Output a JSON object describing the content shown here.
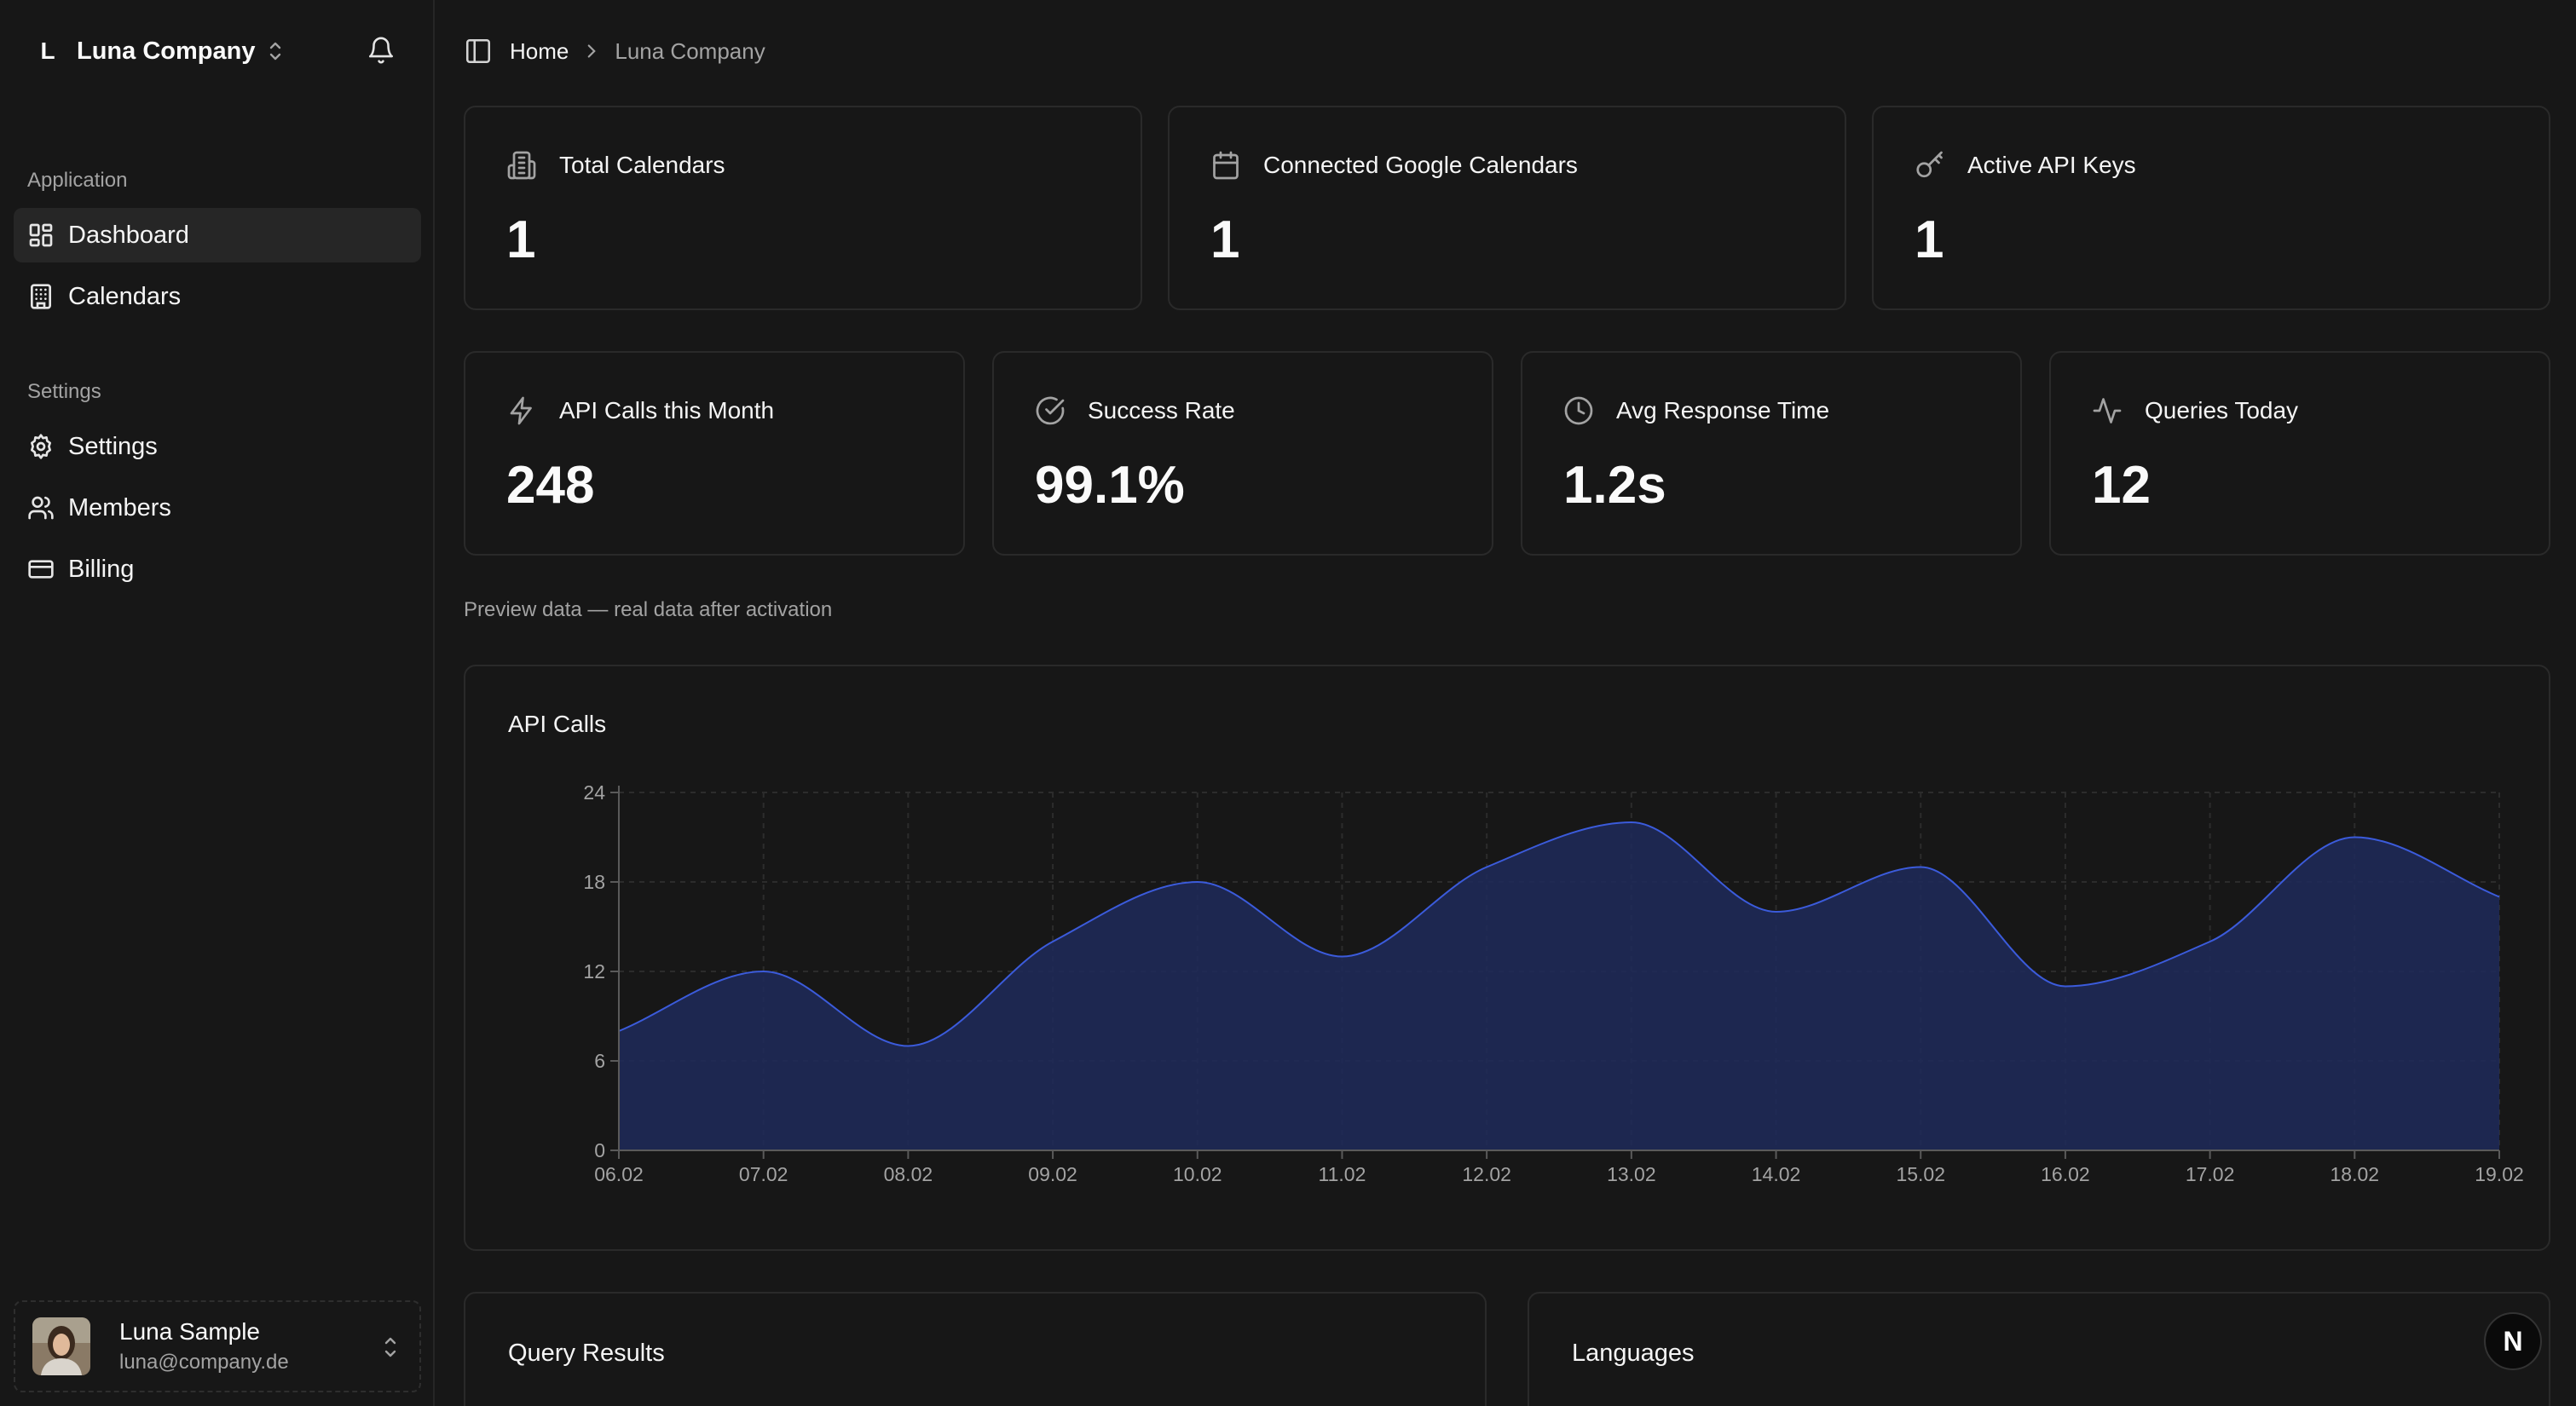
{
  "team": {
    "logo_letter": "L",
    "name": "Luna Company"
  },
  "sidebar": {
    "groups": [
      {
        "label": "Application",
        "items": [
          {
            "label": "Dashboard",
            "icon": "layout-dashboard-icon",
            "active": true
          },
          {
            "label": "Calendars",
            "icon": "building-icon"
          }
        ]
      },
      {
        "label": "Settings",
        "items": [
          {
            "label": "Settings",
            "icon": "gear-icon"
          },
          {
            "label": "Members",
            "icon": "users-icon"
          },
          {
            "label": "Billing",
            "icon": "credit-card-icon"
          }
        ]
      }
    ]
  },
  "user": {
    "name": "Luna Sample",
    "email": "luna@company.de"
  },
  "breadcrumb": {
    "home": "Home",
    "current": "Luna Company"
  },
  "stats_top": [
    {
      "title": "Total Calendars",
      "value": "1",
      "icon": "building-icon"
    },
    {
      "title": "Connected Google Calendars",
      "value": "1",
      "icon": "calendar-icon"
    },
    {
      "title": "Active API Keys",
      "value": "1",
      "icon": "key-icon"
    }
  ],
  "stats_bottom": [
    {
      "title": "API Calls this Month",
      "value": "248",
      "icon": "zap-icon"
    },
    {
      "title": "Success Rate",
      "value": "99.1%",
      "icon": "check-circle-icon"
    },
    {
      "title": "Avg Response Time",
      "value": "1.2s",
      "icon": "clock-icon"
    },
    {
      "title": "Queries Today",
      "value": "12",
      "icon": "activity-icon"
    }
  ],
  "preview_note": "Preview data — real data after activation",
  "chart_data": {
    "type": "area",
    "title": "API Calls",
    "x": [
      "06.02",
      "07.02",
      "08.02",
      "09.02",
      "10.02",
      "11.02",
      "12.02",
      "13.02",
      "14.02",
      "15.02",
      "16.02",
      "17.02",
      "18.02",
      "19.02"
    ],
    "series": [
      {
        "name": "API Calls",
        "values": [
          8,
          12,
          7,
          14,
          18,
          13,
          19,
          22,
          16,
          19,
          11,
          14,
          21,
          17
        ]
      }
    ],
    "ylim": [
      0,
      24
    ],
    "yticks": [
      0,
      6,
      12,
      18,
      24
    ],
    "xlabel": "",
    "ylabel": "",
    "grid": true,
    "color": "#3b5bdb"
  },
  "sections": {
    "query_results": "Query Results",
    "languages": "Languages"
  },
  "fab": {
    "label": "N"
  },
  "colors": {
    "background": "#171717",
    "card_border": "#2a2a2a",
    "accent": "#3b5bdb",
    "muted_text": "#a3a3a3"
  }
}
